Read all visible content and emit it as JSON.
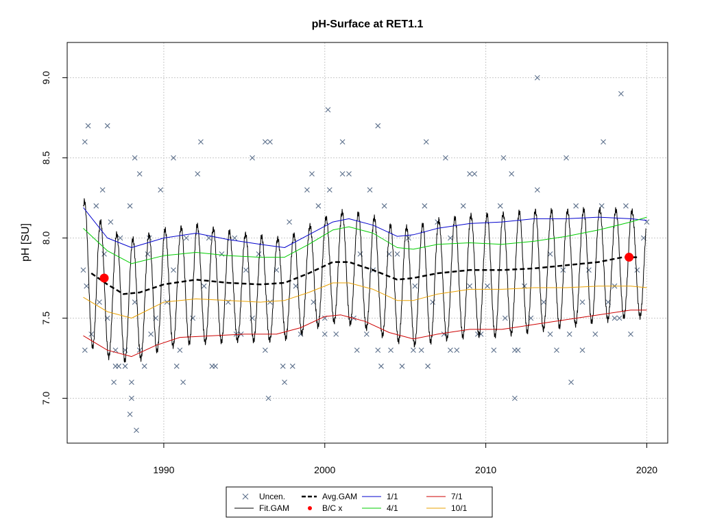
{
  "chart_data": {
    "type": "scatter",
    "title": "pH-Surface at RET1.1",
    "xlabel": "",
    "ylabel": "pH [SU]",
    "xlim": [
      1984,
      2021.3
    ],
    "ylim": [
      6.72,
      9.22
    ],
    "x_ticks": [
      1990,
      2000,
      2010,
      2020
    ],
    "y_ticks": [
      7.0,
      7.5,
      8.0,
      8.5,
      9.0
    ],
    "x_tick_labels": [
      "1990",
      "2000",
      "2010",
      "2020"
    ],
    "y_tick_labels": [
      "7.0",
      "7.5",
      "8.0",
      "8.5",
      "9.0"
    ],
    "grid": true,
    "legend_position": "bottom",
    "legend": [
      {
        "label": "Uncen.",
        "kind": "x-marker",
        "color": "#5a6e8a"
      },
      {
        "label": "Fit.GAM",
        "kind": "line",
        "color": "#000000"
      },
      {
        "label": "Avg.GAM",
        "kind": "dashed",
        "color": "#000000"
      },
      {
        "label": "B/C x",
        "kind": "dot",
        "color": "#ff0000"
      },
      {
        "label": "1/1",
        "kind": "line",
        "color": "#0000cd"
      },
      {
        "label": "4/1",
        "kind": "line",
        "color": "#00cd00"
      },
      {
        "label": "7/1",
        "kind": "line",
        "color": "#cd0000"
      },
      {
        "label": "10/1",
        "kind": "line",
        "color": "#e8a000"
      }
    ],
    "colors": {
      "observations": "#5a6e8a",
      "fit_gam": "#000000",
      "avg_gam": "#000000",
      "bc": "#ff0000",
      "jan1": "#0000cd",
      "apr1": "#00cd00",
      "jul1": "#cd0000",
      "oct1": "#e8a000"
    },
    "series": [
      {
        "name": "Avg.GAM",
        "x": [
          1985.5,
          1986.5,
          1987.5,
          1988.5,
          1990,
          1992,
          1994,
          1996,
          1997.5,
          1999,
          2000.5,
          2001.5,
          2003,
          2004.5,
          2005.5,
          2007,
          2009,
          2011,
          2013,
          2015,
          2017,
          2018.5,
          2019.5
        ],
        "y": [
          7.78,
          7.71,
          7.65,
          7.66,
          7.71,
          7.74,
          7.72,
          7.71,
          7.72,
          7.78,
          7.85,
          7.85,
          7.8,
          7.74,
          7.75,
          7.78,
          7.8,
          7.8,
          7.81,
          7.83,
          7.85,
          7.88,
          7.88
        ]
      },
      {
        "name": "1/1",
        "x": [
          1985,
          1986.5,
          1988,
          1990,
          1992,
          1994,
          1996,
          1997.5,
          1999,
          2000.5,
          2001.5,
          2003,
          2004.5,
          2005.5,
          2007,
          2009,
          2011,
          2013,
          2015,
          2017,
          2019,
          2020
        ],
        "y": [
          8.19,
          8.0,
          7.94,
          8.0,
          8.03,
          7.99,
          7.96,
          7.94,
          8.02,
          8.1,
          8.12,
          8.08,
          8.01,
          8.02,
          8.06,
          8.09,
          8.1,
          8.12,
          8.12,
          8.13,
          8.12,
          8.11
        ]
      },
      {
        "name": "4/1",
        "x": [
          1985,
          1986.5,
          1988,
          1990,
          1992,
          1994,
          1996,
          1997.5,
          1999,
          2000.5,
          2001.5,
          2003,
          2004.5,
          2005.5,
          2007,
          2009,
          2011,
          2013,
          2015,
          2017,
          2019,
          2020
        ],
        "y": [
          8.06,
          7.92,
          7.84,
          7.89,
          7.91,
          7.89,
          7.88,
          7.88,
          7.96,
          8.05,
          8.07,
          8.03,
          7.94,
          7.93,
          7.96,
          7.97,
          7.96,
          7.98,
          8.01,
          8.05,
          8.1,
          8.13
        ]
      },
      {
        "name": "7/1",
        "x": [
          1985,
          1986.5,
          1988,
          1989.5,
          1991,
          1993,
          1995,
          1997,
          1998.5,
          2000,
          2001,
          2002.5,
          2004,
          2005.5,
          2007,
          2009,
          2011,
          2013,
          2015,
          2017,
          2019,
          2020
        ],
        "y": [
          7.39,
          7.3,
          7.26,
          7.33,
          7.38,
          7.39,
          7.4,
          7.4,
          7.44,
          7.51,
          7.52,
          7.48,
          7.41,
          7.37,
          7.4,
          7.43,
          7.43,
          7.46,
          7.49,
          7.52,
          7.55,
          7.55
        ]
      },
      {
        "name": "10/1",
        "x": [
          1985,
          1986.5,
          1988,
          1990,
          1992,
          1994,
          1996,
          1997.5,
          1999,
          2000.5,
          2001.5,
          2003,
          2004.5,
          2005.5,
          2007,
          2009,
          2011,
          2013,
          2015,
          2017,
          2019,
          2020
        ],
        "y": [
          7.63,
          7.54,
          7.5,
          7.6,
          7.62,
          7.61,
          7.6,
          7.61,
          7.66,
          7.72,
          7.72,
          7.68,
          7.61,
          7.61,
          7.65,
          7.68,
          7.68,
          7.69,
          7.69,
          7.7,
          7.7,
          7.69
        ]
      },
      {
        "name": "B/C x",
        "x": [
          1986.3,
          2018.9
        ],
        "y": [
          7.75,
          7.88
        ]
      },
      {
        "name": "Uncen.",
        "x": [
          1985.0,
          1985.1,
          1985.2,
          1985.3,
          1985.5,
          1985.8,
          1986.0,
          1986.3,
          1986.5,
          1986.7,
          1987.0,
          1987.3,
          1987.6,
          1987.9,
          1988.2,
          1988.5,
          1988.8,
          1989.1,
          1989.5,
          1989.8,
          1990.2,
          1990.6,
          1991.0,
          1991.4,
          1991.8,
          1992.1,
          1992.5,
          1992.8,
          1993.2,
          1993.6,
          1994.0,
          1994.4,
          1994.8,
          1995.1,
          1995.5,
          1995.9,
          1996.3,
          1996.6,
          1997.0,
          1997.4,
          1997.8,
          1998.2,
          1998.5,
          1998.9,
          1999.3,
          1999.6,
          2000.0,
          2000.3,
          2000.7,
          2001.1,
          2001.5,
          2001.8,
          2002.2,
          2002.6,
          2003.0,
          2003.3,
          2003.7,
          2004.1,
          2004.5,
          2004.8,
          2005.2,
          2005.6,
          2006.0,
          2006.3,
          2006.7,
          2007.0,
          2007.4,
          2007.8,
          2008.2,
          2008.6,
          2009.0,
          2009.3,
          2009.7,
          2010.1,
          2010.5,
          2010.9,
          2011.2,
          2011.6,
          2012.0,
          2012.4,
          2012.8,
          2013.2,
          2013.6,
          2014.0,
          2014.4,
          2014.8,
          2015.2,
          2015.6,
          2016.0,
          2016.4,
          2016.8,
          2017.2,
          2017.6,
          2018.0,
          2018.3,
          2018.7,
          2019.0,
          2019.4,
          2019.8,
          2020.0,
          1985.1,
          1986.2,
          1988.2,
          1989.0,
          1990.6,
          1992.3,
          1995.5,
          1996.6,
          1999.2,
          2000.2,
          2001.1,
          2002.8,
          2004.0,
          2006.2,
          2007.5,
          2009.0,
          2011.1,
          2013.2,
          2015.0,
          2017.3,
          2018.4,
          1987.0,
          1988.0,
          1989.2,
          1991.2,
          1993.0,
          1994.5,
          1996.3,
          1998.0,
          2000.0,
          2002.0,
          2003.5,
          2005.5,
          2007.8,
          2009.5,
          2011.8,
          2014.0,
          2016.0,
          2018.0,
          1986.9,
          1987.6,
          1988.0,
          1988.5,
          1990.8,
          1996.5,
          1997.5,
          2003.3,
          2006.4,
          2011.8,
          2015.3,
          1987.9,
          1988.3,
          1987.2,
          1986.5
        ],
        "y": [
          7.8,
          8.6,
          7.7,
          8.7,
          7.4,
          8.2,
          7.6,
          7.9,
          8.7,
          8.1,
          7.2,
          8.0,
          7.3,
          8.2,
          7.6,
          8.4,
          7.2,
          8.0,
          7.5,
          8.3,
          7.6,
          7.8,
          7.3,
          8.0,
          7.5,
          8.4,
          7.7,
          8.0,
          7.2,
          7.9,
          7.6,
          8.0,
          7.4,
          7.8,
          7.5,
          7.9,
          8.6,
          7.6,
          7.8,
          7.2,
          8.1,
          7.7,
          7.4,
          8.3,
          7.6,
          8.2,
          7.5,
          8.3,
          7.4,
          8.6,
          8.4,
          7.5,
          7.9,
          7.4,
          7.8,
          8.7,
          8.2,
          7.3,
          7.9,
          7.2,
          8.0,
          7.7,
          7.3,
          8.6,
          7.6,
          8.1,
          7.4,
          8.0,
          7.3,
          8.2,
          7.7,
          8.4,
          7.4,
          7.7,
          7.3,
          8.2,
          7.5,
          8.4,
          7.3,
          7.7,
          7.5,
          8.3,
          7.6,
          7.9,
          7.3,
          7.8,
          7.4,
          8.2,
          7.6,
          7.8,
          7.4,
          8.2,
          7.6,
          7.7,
          7.5,
          8.2,
          7.4,
          7.8,
          8.0,
          8.1,
          7.3,
          8.3,
          8.5,
          7.9,
          8.5,
          8.6,
          8.5,
          8.6,
          8.4,
          8.8,
          8.4,
          8.3,
          7.9,
          8.2,
          8.5,
          8.4,
          8.5,
          9.0,
          8.5,
          8.6,
          8.9,
          7.3,
          7.1,
          7.4,
          7.1,
          7.2,
          7.4,
          7.3,
          7.2,
          7.4,
          7.3,
          7.2,
          7.3,
          7.3,
          7.4,
          7.3,
          7.4,
          7.3,
          7.5,
          7.1,
          7.2,
          7.0,
          7.3,
          7.2,
          7.0,
          7.1,
          7.3,
          7.2,
          7.0,
          7.1,
          6.9,
          6.8,
          7.2,
          7.5
        ]
      }
    ]
  }
}
